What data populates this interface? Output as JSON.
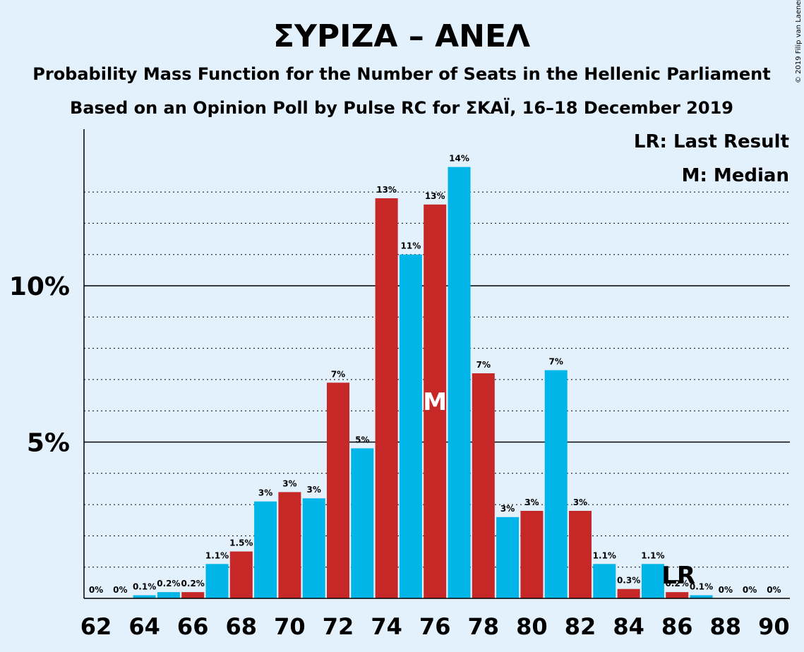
{
  "title": "ΣΥΡΙΖΑ – ΑΝΕΛ",
  "subtitle1": "Probability Mass Function for the Number of Seats in the Hellenic Parliament",
  "subtitle2": "Based on an Opinion Poll by Pulse RC for ΣΚΑΪ, 16–18 December 2019",
  "copyright": "© 2019 Filip van Laenen",
  "legend": {
    "lr": "LR: Last Result",
    "m": "M: Median"
  },
  "markers": {
    "median_label": "M",
    "median_seat": 76,
    "lr_label": "LR",
    "lr_seat": 86
  },
  "colors": {
    "blue": "#00b5e8",
    "red": "#c62828",
    "background": "#e3f1fd"
  },
  "chart_data": {
    "type": "bar",
    "x": [
      62,
      63,
      64,
      65,
      66,
      67,
      68,
      69,
      70,
      71,
      72,
      73,
      74,
      75,
      76,
      77,
      78,
      79,
      80,
      81,
      82,
      83,
      84,
      85,
      86,
      87,
      88,
      89,
      90
    ],
    "values": [
      0,
      0,
      0.1,
      0.2,
      0.2,
      1.1,
      1.5,
      3.1,
      3.4,
      3.2,
      6.9,
      4.8,
      12.8,
      11.0,
      12.6,
      13.8,
      7.2,
      2.6,
      2.8,
      7.3,
      2.8,
      1.1,
      0.3,
      1.1,
      0.2,
      0.1,
      0,
      0,
      0
    ],
    "labels": [
      "0%",
      "0%",
      "0.1%",
      "0.2%",
      "0.2%",
      "1.1%",
      "1.5%",
      "3%",
      "3%",
      "3%",
      "7%",
      "5%",
      "13%",
      "11%",
      "13%",
      "14%",
      "7%",
      "3%",
      "3%",
      "7%",
      "3%",
      "1.1%",
      "0.3%",
      "1.1%",
      "0.2%",
      "0.1%",
      "0%",
      "0%",
      "0%"
    ],
    "colors": [
      "blue",
      "blue",
      "blue",
      "blue",
      "red",
      "blue",
      "red",
      "blue",
      "red",
      "blue",
      "red",
      "blue",
      "red",
      "blue",
      "red",
      "blue",
      "red",
      "blue",
      "red",
      "blue",
      "red",
      "blue",
      "red",
      "blue",
      "red",
      "blue",
      "blue",
      "blue",
      "blue"
    ],
    "x_ticks": [
      "62",
      "64",
      "66",
      "68",
      "70",
      "72",
      "74",
      "76",
      "78",
      "80",
      "82",
      "84",
      "86",
      "88",
      "90"
    ],
    "y_ticks": [
      {
        "value": 5,
        "label": "5%"
      },
      {
        "value": 10,
        "label": "10%"
      }
    ],
    "ylim": [
      0,
      15
    ],
    "grid": true
  }
}
